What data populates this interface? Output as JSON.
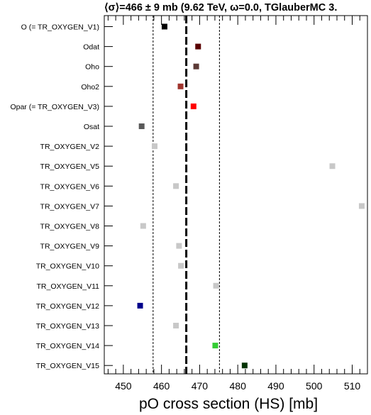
{
  "chart_data": {
    "type": "scatter",
    "title": "⟨σ⟩=466 ± 9 mb (9.62 TeV, ω=0.0, TGlauberMC 3.",
    "xlabel": "pO cross section (HS) [mb]",
    "ylabel": "",
    "xlim": [
      445,
      514
    ],
    "xticks": [
      450,
      460,
      470,
      480,
      490,
      500,
      510
    ],
    "mean_line": 466.5,
    "band": [
      457.8,
      475.2
    ],
    "grid": false,
    "categories": [
      {
        "label": "O (= TR_OXYGEN_V1)",
        "value": 460.8,
        "color": "#000000"
      },
      {
        "label": "Odat",
        "value": 469.6,
        "color": "#5a0000"
      },
      {
        "label": "Oho",
        "value": 469.1,
        "color": "#5c3a36"
      },
      {
        "label": "Oho2",
        "value": 465.0,
        "color": "#a0342d"
      },
      {
        "label": "Opar (= TR_OXYGEN_V3)",
        "value": 468.4,
        "color": "#ff0000"
      },
      {
        "label": "Osat",
        "value": 454.8,
        "color": "#595959"
      },
      {
        "label": "TR_OXYGEN_V2",
        "value": 458.2,
        "color": "#c8c8c8"
      },
      {
        "label": "TR_OXYGEN_V5",
        "value": 504.8,
        "color": "#c8c8c8"
      },
      {
        "label": "TR_OXYGEN_V6",
        "value": 463.8,
        "color": "#c8c8c8"
      },
      {
        "label": "TR_OXYGEN_V7",
        "value": 512.5,
        "color": "#c8c8c8"
      },
      {
        "label": "TR_OXYGEN_V8",
        "value": 455.2,
        "color": "#c8c8c8"
      },
      {
        "label": "TR_OXYGEN_V9",
        "value": 464.6,
        "color": "#c8c8c8"
      },
      {
        "label": "TR_OXYGEN_V10",
        "value": 465.1,
        "color": "#c8c8c8"
      },
      {
        "label": "TR_OXYGEN_V11",
        "value": 474.3,
        "color": "#c8c8c8"
      },
      {
        "label": "TR_OXYGEN_V12",
        "value": 454.4,
        "color": "#00008b"
      },
      {
        "label": "TR_OXYGEN_V13",
        "value": 463.8,
        "color": "#c8c8c8"
      },
      {
        "label": "TR_OXYGEN_V14",
        "value": 474.1,
        "color": "#33cc33"
      },
      {
        "label": "TR_OXYGEN_V15",
        "value": 481.8,
        "color": "#003300"
      }
    ]
  }
}
